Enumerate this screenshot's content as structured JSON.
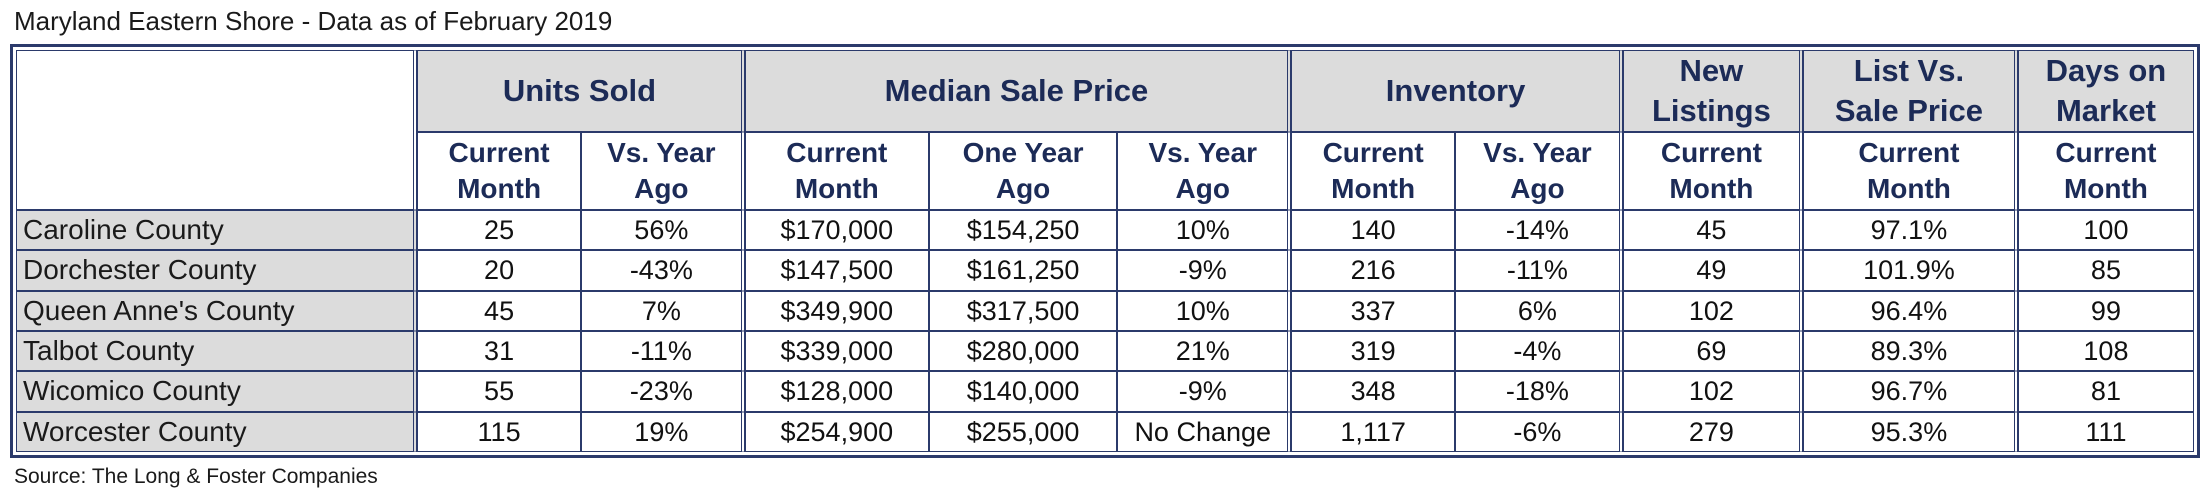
{
  "title": "Maryland Eastern Shore - Data as of February 2019",
  "source": "Source: The Long & Foster Companies",
  "headers": {
    "units_sold": "Units Sold",
    "median_sale_price": "Median Sale Price",
    "inventory": "Inventory",
    "new_listings_1": "New",
    "new_listings_2": "Listings",
    "list_vs_sale_1": "List Vs.",
    "list_vs_sale_2": "Sale Price",
    "days_on_market_1": "Days on",
    "days_on_market_2": "Market"
  },
  "subheaders": {
    "current_1": "Current",
    "current_2": "Month",
    "vs_year_1": "Vs. Year",
    "vs_year_2": "Ago",
    "one_year_1": "One Year",
    "one_year_2": "Ago"
  },
  "rows": [
    {
      "county": "Caroline County",
      "units": "25",
      "units_vs": "56%",
      "price": "$170,000",
      "price_prev": "$154,250",
      "price_vs": "10%",
      "inv": "140",
      "inv_vs": "-14%",
      "new": "45",
      "list_sale": "97.1%",
      "days": "100"
    },
    {
      "county": "Dorchester County",
      "units": "20",
      "units_vs": "-43%",
      "price": "$147,500",
      "price_prev": "$161,250",
      "price_vs": "-9%",
      "inv": "216",
      "inv_vs": "-11%",
      "new": "49",
      "list_sale": "101.9%",
      "days": "85"
    },
    {
      "county": "Queen Anne's County",
      "units": "45",
      "units_vs": "7%",
      "price": "$349,900",
      "price_prev": "$317,500",
      "price_vs": "10%",
      "inv": "337",
      "inv_vs": "6%",
      "new": "102",
      "list_sale": "96.4%",
      "days": "99"
    },
    {
      "county": "Talbot County",
      "units": "31",
      "units_vs": "-11%",
      "price": "$339,000",
      "price_prev": "$280,000",
      "price_vs": "21%",
      "inv": "319",
      "inv_vs": "-4%",
      "new": "69",
      "list_sale": "89.3%",
      "days": "108"
    },
    {
      "county": "Wicomico County",
      "units": "55",
      "units_vs": "-23%",
      "price": "$128,000",
      "price_prev": "$140,000",
      "price_vs": "-9%",
      "inv": "348",
      "inv_vs": "-18%",
      "new": "102",
      "list_sale": "96.7%",
      "days": "81"
    },
    {
      "county": "Worcester County",
      "units": "115",
      "units_vs": "19%",
      "price": "$254,900",
      "price_prev": "$255,000",
      "price_vs": "No Change",
      "inv": "1,117",
      "inv_vs": "-6%",
      "new": "279",
      "list_sale": "95.3%",
      "days": "111"
    }
  ],
  "colors": {
    "border": "#2b3a6b",
    "header_fill": "#dcdcdc",
    "header_text": "#1c2b57"
  }
}
